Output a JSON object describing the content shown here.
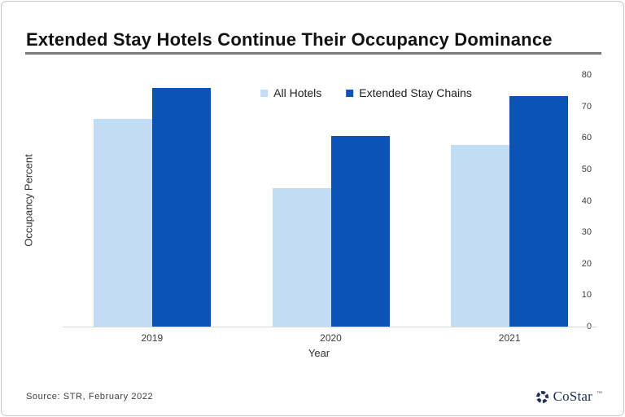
{
  "title": "Extended Stay Hotels Continue Their Occupancy Dominance",
  "chart_data": {
    "type": "bar",
    "categories": [
      "2019",
      "2020",
      "2021"
    ],
    "series": [
      {
        "name": "All Hotels",
        "color": "#c3dcf6",
        "values": [
          66.0,
          44.0,
          57.7
        ]
      },
      {
        "name": "Extended Stay Chains",
        "color": "#0b53b5",
        "values": [
          75.8,
          60.6,
          73.3
        ]
      }
    ],
    "title": "Extended Stay Hotels Continue Their Occupancy Dominance",
    "xlabel": "Year",
    "ylabel": "Occupancy Percent",
    "ylim": [
      0,
      80
    ],
    "yticks": [
      0,
      10,
      20,
      30,
      40,
      50,
      60,
      70,
      80
    ],
    "grid": false,
    "legend_position": "top-center"
  },
  "footer": {
    "source": "Source:  STR,  February 2022",
    "brand": "CoStar",
    "trademark": "™"
  },
  "colors": {
    "all_hotels": "#c3dcf6",
    "extended_stay": "#0b53b5",
    "title_rule": "#7a7a7a",
    "axis_line": "#d8d8d8",
    "brand_navy": "#1f2c52"
  }
}
